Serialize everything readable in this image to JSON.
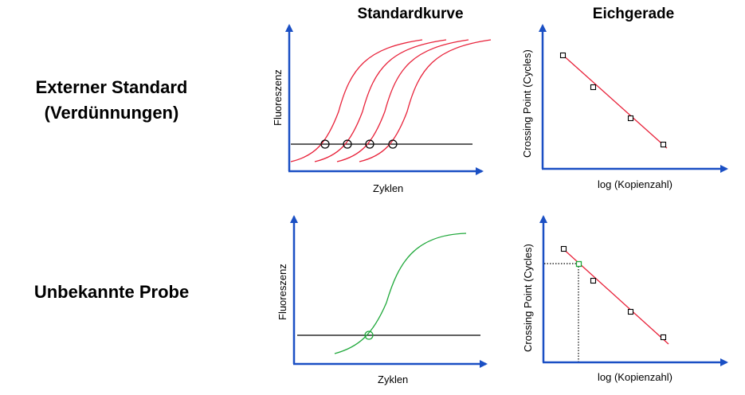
{
  "headers": {
    "standard_curve": "Standardkurve",
    "calibration_line": "Eichgerade"
  },
  "rows": {
    "external_standard": {
      "line1": "Externer Standard",
      "line2": "(Verdünnungen)"
    },
    "unknown_sample": "Unbekannte Probe"
  },
  "axes": {
    "fluorescence": "Fluoreszenz",
    "cycles": "Zyklen",
    "crossing_point": "Crossing Point (Cycles)",
    "log_copies": "log (Kopienzahl)"
  },
  "colors": {
    "axis": "#1a4fc4",
    "standard_curve": "#e8223a",
    "sample_curve": "#1fa83a",
    "threshold": "#000000"
  },
  "markers": {
    "crossing_circle": "circle-marker",
    "calibration_point": "square-marker"
  }
}
